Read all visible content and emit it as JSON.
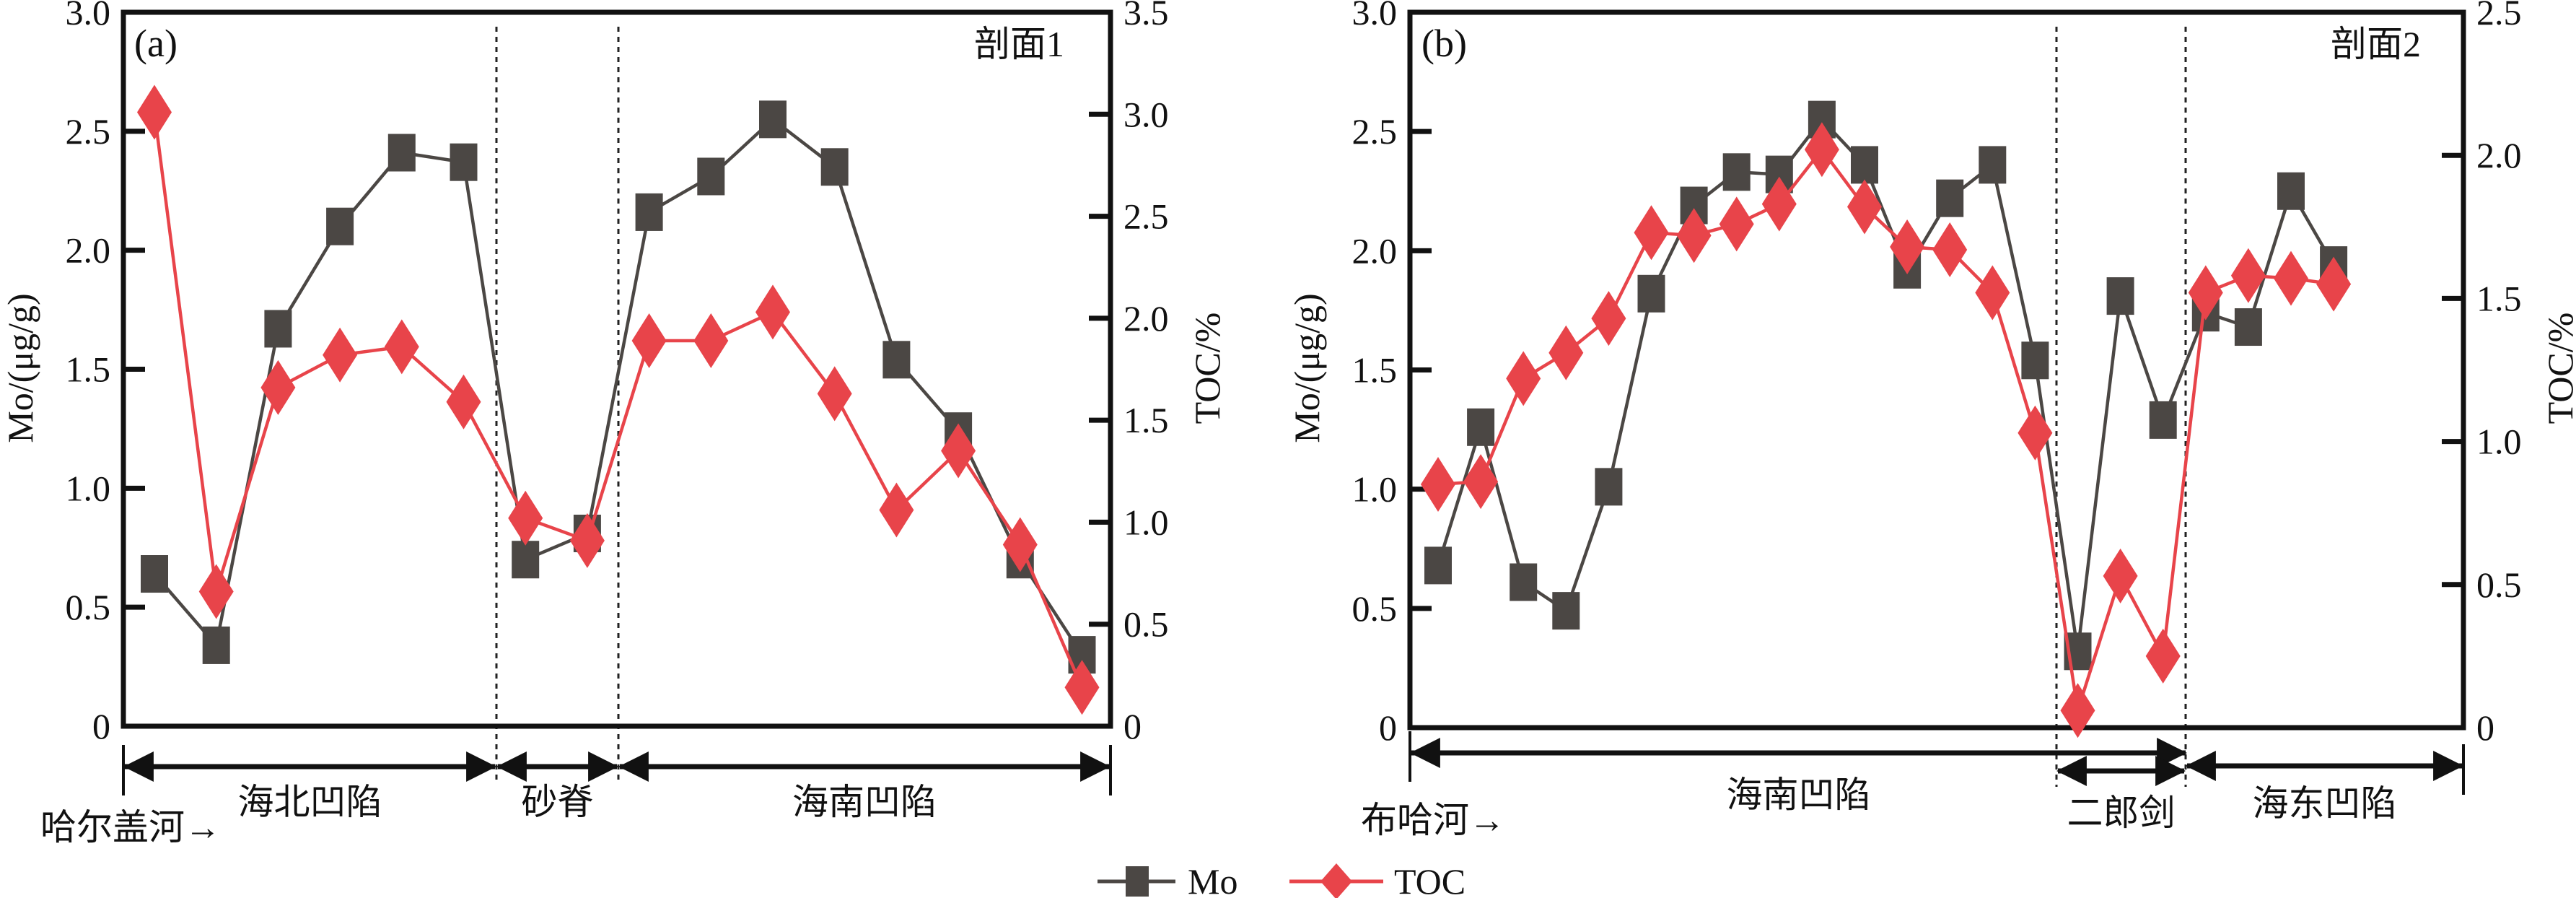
{
  "legend": [
    {
      "name": "Mo",
      "marker": "square",
      "color": "#4b4744"
    },
    {
      "name": "TOC",
      "marker": "diamond",
      "color": "#e8444a"
    }
  ],
  "chart_data": [
    {
      "type": "line",
      "panel": "(a)",
      "section_label": "剖面1",
      "xlabel": "",
      "ylabel": "Mo/(μg/g)",
      "y2label": "TOC/%",
      "ylim": [
        0,
        3.0
      ],
      "y2lim": [
        0,
        3.5
      ],
      "yticks": [
        0,
        0.5,
        1.0,
        1.5,
        2.0,
        2.5,
        3.0
      ],
      "ytick_labels": [
        "0",
        "0.5",
        "1.0",
        "1.5",
        "2.0",
        "2.5",
        "3.0"
      ],
      "y2ticks": [
        0,
        0.5,
        1.0,
        1.5,
        2.0,
        2.5,
        3.0,
        3.5
      ],
      "y2tick_labels": [
        "0",
        "0.5",
        "1.0",
        "1.5",
        "2.0",
        "2.5",
        "3.0",
        "3.5"
      ],
      "grid": false,
      "x": [
        1,
        2,
        3,
        4,
        5,
        6,
        7,
        8,
        9,
        10,
        11,
        12,
        13,
        14,
        15,
        16
      ],
      "series": [
        {
          "name": "Mo",
          "axis": "left",
          "values": [
            0.64,
            0.34,
            1.67,
            2.1,
            2.41,
            2.37,
            0.7,
            0.81,
            2.16,
            2.31,
            2.55,
            2.35,
            1.54,
            1.24,
            0.7,
            0.3
          ]
        },
        {
          "name": "TOC",
          "axis": "right",
          "values": [
            3.01,
            0.66,
            1.66,
            1.82,
            1.86,
            1.59,
            1.02,
            0.91,
            1.89,
            1.89,
            2.03,
            1.63,
            1.06,
            1.35,
            0.89,
            0.19
          ]
        }
      ],
      "dividers_after_index": [
        6.5,
        8.5
      ],
      "regions": [
        {
          "label": "海北凹陷",
          "from": 0,
          "to": 6.5
        },
        {
          "label": "砂脊",
          "from": 6.5,
          "to": 8.5
        },
        {
          "label": "海南凹陷",
          "from": 8.5,
          "to": 16.9
        }
      ],
      "direction_label": "哈尔盖河→"
    },
    {
      "type": "line",
      "panel": "(b)",
      "section_label": "剖面2",
      "xlabel": "",
      "ylabel": "Mo/(μg/g)",
      "y2label": "TOC/%",
      "ylim": [
        0,
        3.0
      ],
      "y2lim": [
        0,
        2.5
      ],
      "yticks": [
        0,
        0.5,
        1.0,
        1.5,
        2.0,
        2.5,
        3.0
      ],
      "ytick_labels": [
        "0",
        "0.5",
        "1.0",
        "1.5",
        "2.0",
        "2.5",
        "3.0"
      ],
      "y2ticks": [
        0,
        0.5,
        1.0,
        1.5,
        2.0,
        2.5
      ],
      "y2tick_labels": [
        "0",
        "0.5",
        "1.0",
        "1.5",
        "2.0",
        "2.5"
      ],
      "grid": false,
      "x": [
        1,
        2,
        3,
        4,
        5,
        6,
        7,
        8,
        9,
        10,
        11,
        12,
        13,
        14,
        15,
        16,
        17,
        18,
        19,
        20,
        21,
        22
      ],
      "series": [
        {
          "name": "Mo",
          "axis": "left",
          "values": [
            0.68,
            1.26,
            0.61,
            0.49,
            1.01,
            1.82,
            2.19,
            2.33,
            2.32,
            2.55,
            2.36,
            1.92,
            2.22,
            2.36,
            1.54,
            0.32,
            1.81,
            1.29,
            1.74,
            1.68,
            2.25,
            1.94
          ]
        },
        {
          "name": "TOC",
          "axis": "right",
          "values": [
            0.85,
            0.86,
            1.22,
            1.31,
            1.43,
            1.73,
            1.72,
            1.76,
            1.83,
            2.02,
            1.82,
            1.68,
            1.67,
            1.52,
            1.03,
            0.06,
            0.53,
            0.25,
            1.52,
            1.58,
            1.57,
            1.55
          ]
        }
      ],
      "dividers_after_index": [
        15.5,
        18.5
      ],
      "regions": [
        {
          "label": "海南凹陷",
          "from": 0,
          "to": 18.5
        },
        {
          "label": "二郎剑",
          "from": 15.5,
          "to": 18.5
        },
        {
          "label": "海东凹陷",
          "from": 18.5,
          "to": 25
        }
      ],
      "direction_label": "布哈河→"
    }
  ]
}
